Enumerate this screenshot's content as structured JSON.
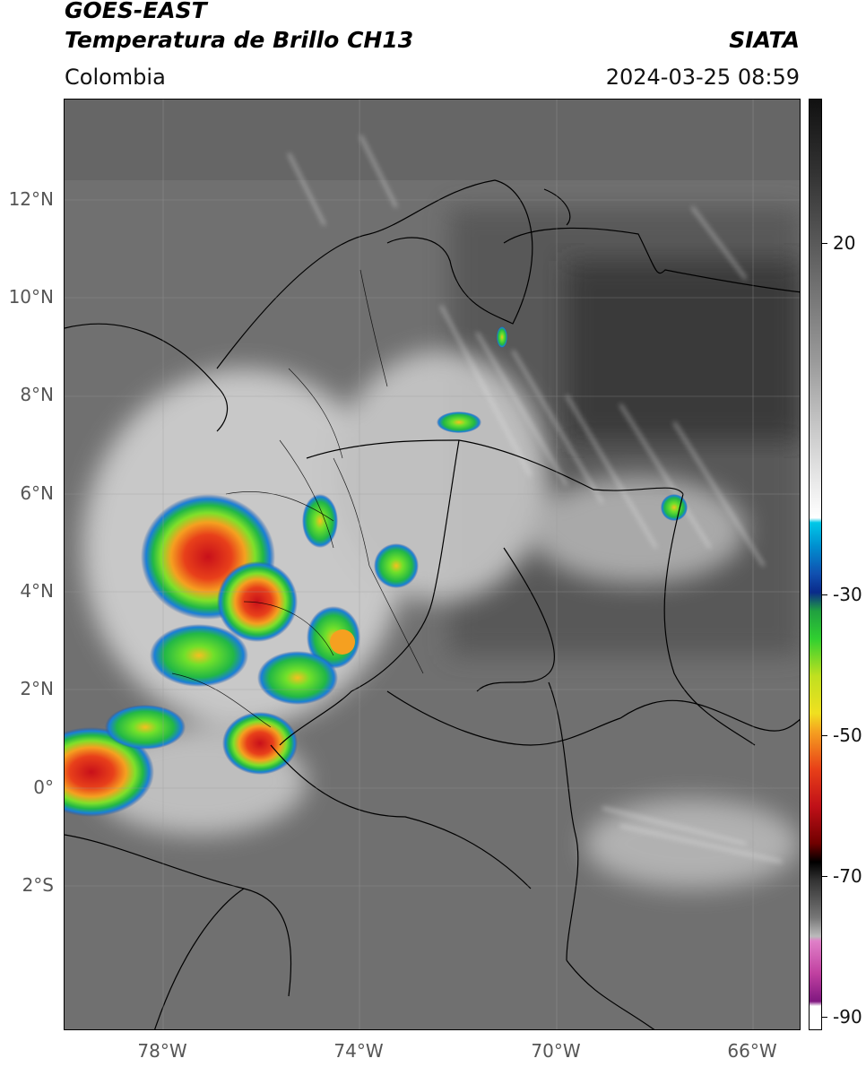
{
  "header": {
    "line1": "GOES-EAST",
    "line2": "Temperatura de Brillo CH13",
    "region": "Colombia",
    "brand": "SIATA",
    "timestamp": "2024-03-25 08:59"
  },
  "axes": {
    "lat_ticks": [
      "12°N",
      "10°N",
      "8°N",
      "6°N",
      "4°N",
      "2°N",
      "0°",
      "2°S"
    ],
    "lon_ticks": [
      "78°W",
      "74°W",
      "70°W",
      "66°W"
    ]
  },
  "colorbar": {
    "ticks": [
      "20",
      "-30",
      "-50",
      "-70",
      "-90"
    ]
  },
  "colors": {
    "cold_core": "#e0201a",
    "warm_ring": "#f5a020",
    "mid_ring": "#5fd32a",
    "outer_ring": "#1a8fd8",
    "background_cloud": "#6b6b6b"
  }
}
